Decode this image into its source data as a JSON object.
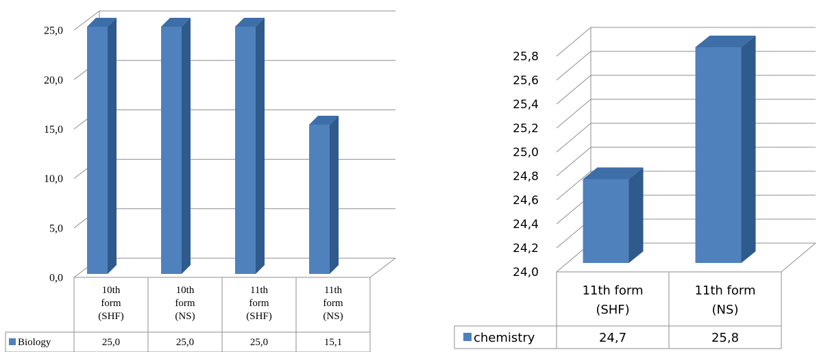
{
  "chart_data": [
    {
      "type": "bar",
      "categories": [
        "10th form (SHF)",
        "10th form (NS)",
        "11th form (SHF)",
        "11th form (NS)"
      ],
      "category_lines": [
        [
          "10th",
          "form",
          "(SHF)"
        ],
        [
          "10th",
          "form",
          "(NS)"
        ],
        [
          "11th",
          "form",
          "(SHF)"
        ],
        [
          "11th",
          "form",
          "(NS)"
        ]
      ],
      "series": [
        {
          "name": "Biology",
          "values": [
            25.0,
            25.0,
            25.0,
            15.1
          ]
        }
      ],
      "table_values": [
        "25,0",
        "25,0",
        "25,0",
        "15,1"
      ],
      "yticks": [
        "0,0",
        "5,0",
        "10,0",
        "15,0",
        "20,0",
        "25,0"
      ],
      "ylim": [
        0,
        25
      ],
      "grid": true,
      "legend": "data table",
      "style": "3d-column",
      "color": "#4f81bd"
    },
    {
      "type": "bar",
      "categories": [
        "11th form (SHF)",
        "11th form (NS)"
      ],
      "category_lines": [
        [
          "11th form",
          "(SHF)"
        ],
        [
          "11th form",
          "(NS)"
        ]
      ],
      "series": [
        {
          "name": "chemistry",
          "values": [
            24.7,
            25.8
          ]
        }
      ],
      "table_values": [
        "24,7",
        "25,8"
      ],
      "yticks": [
        "24,0",
        "24,2",
        "24,4",
        "24,6",
        "24,8",
        "25,0",
        "25,2",
        "25,4",
        "25,6",
        "25,8"
      ],
      "ylim": [
        24.0,
        25.8
      ],
      "grid": true,
      "legend": "data table",
      "style": "3d-column",
      "color": "#4f81bd"
    }
  ]
}
